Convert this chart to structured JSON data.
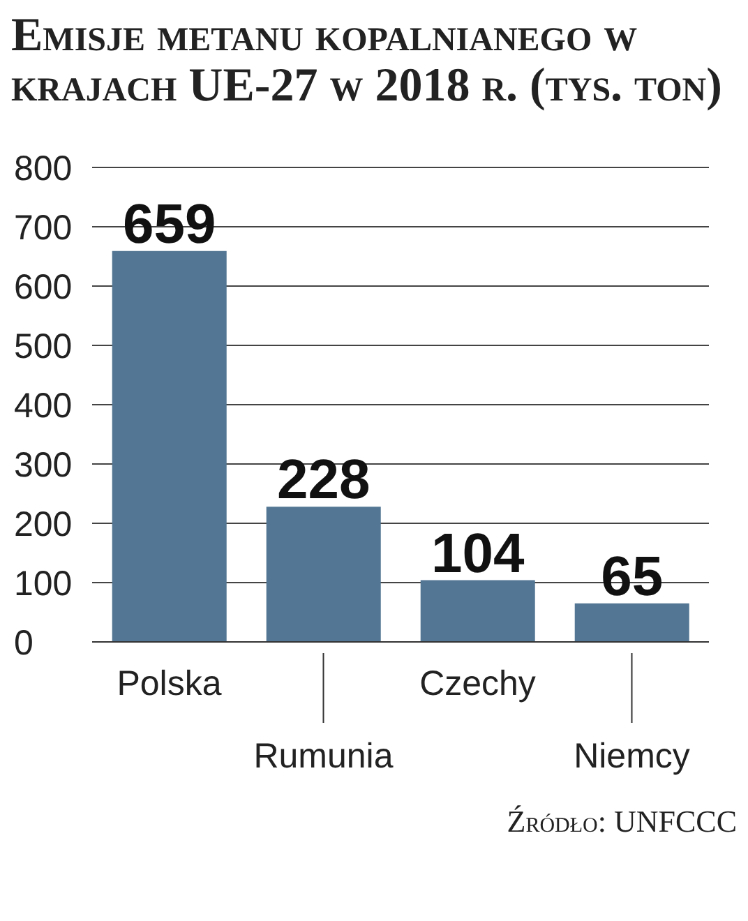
{
  "chart_data": {
    "type": "bar",
    "title": "Emisje metanu kopalnianego w krajach UE-27 w 2018 r. (tys. ton)",
    "categories": [
      "Polska",
      "Rumunia",
      "Czechy",
      "Niemcy"
    ],
    "values": [
      659,
      228,
      104,
      65
    ],
    "color": "#527693",
    "ylim": [
      0,
      800
    ],
    "yticks": [
      0,
      100,
      200,
      300,
      400,
      500,
      600,
      700,
      800
    ],
    "grid": "y",
    "data_labels": true,
    "annotations": [
      "Źródło: UNFCCC"
    ]
  }
}
